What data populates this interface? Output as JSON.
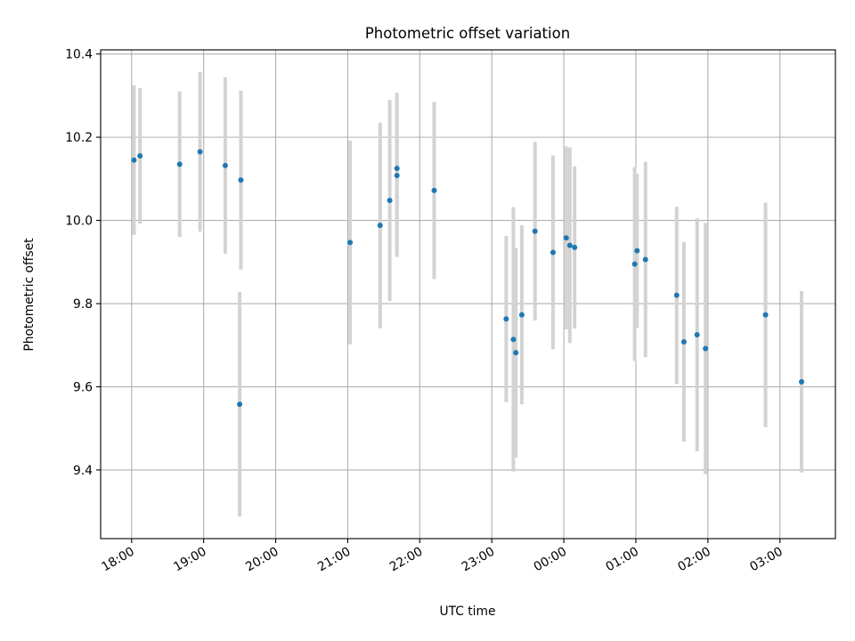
{
  "chart_data": {
    "type": "scatter",
    "title": "Photometric offset variation",
    "xlabel": "UTC time",
    "ylabel": "Photometric offset",
    "x_tick_labels": [
      "18:00",
      "19:00",
      "20:00",
      "21:00",
      "22:00",
      "23:00",
      "00:00",
      "01:00",
      "02:00",
      "03:00"
    ],
    "x_ticks_hours": [
      18,
      19,
      20,
      21,
      22,
      23,
      24,
      25,
      26,
      27
    ],
    "y_ticks": [
      9.4,
      9.6,
      9.8,
      10.0,
      10.2,
      10.4
    ],
    "y_tick_labels": [
      "9.4",
      "9.6",
      "9.8",
      "10.0",
      "10.2",
      "10.4"
    ],
    "xlim_hours": [
      17.57,
      27.77
    ],
    "ylim": [
      9.235,
      10.41
    ],
    "grid": true,
    "marker_color": "#1f77b4",
    "errorbar_color": "#d3d3d3",
    "points": [
      {
        "time": "18:02",
        "y": 10.145,
        "err": 0.18
      },
      {
        "time": "18:07",
        "y": 10.155,
        "err": 0.163
      },
      {
        "time": "18:40",
        "y": 10.135,
        "err": 0.175
      },
      {
        "time": "18:57",
        "y": 10.165,
        "err": 0.192
      },
      {
        "time": "19:18",
        "y": 10.132,
        "err": 0.212
      },
      {
        "time": "19:30",
        "y": 9.558,
        "err": 0.27
      },
      {
        "time": "19:31",
        "y": 10.097,
        "err": 0.215
      },
      {
        "time": "21:02",
        "y": 9.947,
        "err": 0.245
      },
      {
        "time": "21:27",
        "y": 9.988,
        "err": 0.247
      },
      {
        "time": "21:35",
        "y": 10.048,
        "err": 0.242
      },
      {
        "time": "21:41",
        "y": 10.125,
        "err": 0.182
      },
      {
        "time": "21:41",
        "y": 10.108,
        "err": 0.196
      },
      {
        "time": "22:12",
        "y": 10.072,
        "err": 0.213
      },
      {
        "time": "23:12",
        "y": 9.763,
        "err": 0.2
      },
      {
        "time": "23:18",
        "y": 9.714,
        "err": 0.318
      },
      {
        "time": "23:20",
        "y": 9.682,
        "err": 0.252
      },
      {
        "time": "23:25",
        "y": 9.773,
        "err": 0.215
      },
      {
        "time": "23:36",
        "y": 9.974,
        "err": 0.215
      },
      {
        "time": "23:51",
        "y": 9.923,
        "err": 0.233
      },
      {
        "time": "00:02",
        "y": 9.958,
        "err": 0.22
      },
      {
        "time": "00:05",
        "y": 9.94,
        "err": 0.235
      },
      {
        "time": "00:09",
        "y": 9.935,
        "err": 0.195
      },
      {
        "time": "00:59",
        "y": 9.895,
        "err": 0.233
      },
      {
        "time": "01:01",
        "y": 9.927,
        "err": 0.185
      },
      {
        "time": "01:08",
        "y": 9.906,
        "err": 0.235
      },
      {
        "time": "01:34",
        "y": 9.82,
        "err": 0.213
      },
      {
        "time": "01:40",
        "y": 9.708,
        "err": 0.24
      },
      {
        "time": "01:51",
        "y": 9.725,
        "err": 0.28
      },
      {
        "time": "01:58",
        "y": 9.692,
        "err": 0.302
      },
      {
        "time": "02:48",
        "y": 9.773,
        "err": 0.27
      },
      {
        "time": "03:18",
        "y": 9.612,
        "err": 0.218
      }
    ]
  }
}
